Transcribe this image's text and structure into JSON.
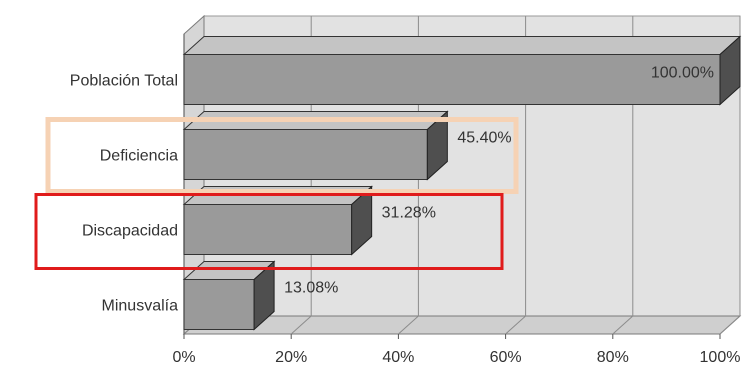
{
  "chart_data": {
    "type": "bar",
    "orientation": "horizontal",
    "three_d": true,
    "categories": [
      "Población Total",
      "Deficiencia",
      "Discapacidad",
      "Minusvalía"
    ],
    "values": [
      100.0,
      45.4,
      31.28,
      13.08
    ],
    "data_labels": [
      "100.00%",
      "45.40%",
      "31.28%",
      "13.08%"
    ],
    "xlim": [
      0,
      100
    ],
    "x_ticks": [
      "0%",
      "20%",
      "40%",
      "60%",
      "80%",
      "100%"
    ],
    "title": "",
    "xlabel": "",
    "ylabel": "",
    "grid": true,
    "highlights": [
      {
        "category": "Deficiencia",
        "color": "#f6d2b4"
      },
      {
        "category": "Discapacidad",
        "color": "#e01b1b"
      }
    ]
  },
  "colors": {
    "bar_front": "#9a9a9a",
    "bar_top": "#c4c4c4",
    "bar_side": "#4f4f4f",
    "wall": "#e2e2e2",
    "floor": "#cfcfcf",
    "grid": "#8c8c8c"
  }
}
